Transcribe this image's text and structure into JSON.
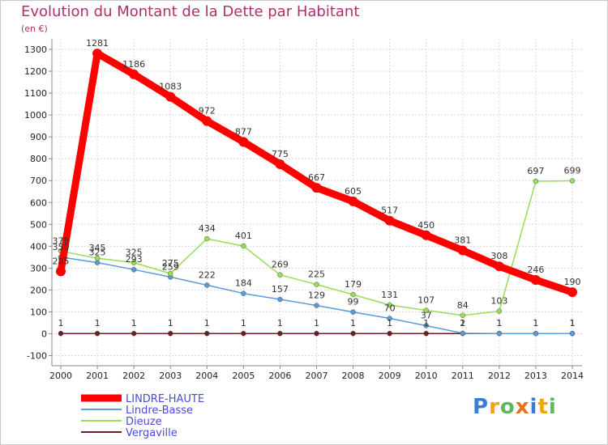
{
  "title": "Evolution du Montant de la Dette par Habitant",
  "subtitle": "(en €)",
  "logo_text": "Proxiti",
  "chart_data": {
    "type": "line",
    "title": "Evolution du Montant de la Dette par Habitant",
    "ylabel": "(en €)",
    "xlabel": "",
    "ylim": [
      -100,
      1300
    ],
    "yticks": [
      -100,
      0,
      100,
      200,
      300,
      400,
      500,
      600,
      700,
      800,
      900,
      1000,
      1100,
      1200,
      1300
    ],
    "grid": true,
    "legend_position": "bottom-left",
    "categories": [
      "2000",
      "2001",
      "2002",
      "2003",
      "2004",
      "2005",
      "2006",
      "2007",
      "2008",
      "2009",
      "2010",
      "2011",
      "2012",
      "2013",
      "2014"
    ],
    "series": [
      {
        "name": "Vergaville",
        "color": "#6b1f24",
        "line_width": 1.5,
        "marker_size": 3,
        "values": [
          1,
          1,
          1,
          1,
          1,
          1,
          1,
          1,
          1,
          1,
          1,
          1,
          1,
          1,
          1
        ],
        "labels": [
          "1",
          "1",
          "1",
          "1",
          "1",
          "1",
          "1",
          "1",
          "1",
          "1",
          "1",
          "1",
          "1",
          "1",
          "1"
        ]
      },
      {
        "name": "Lindre-Basse",
        "color": "#5b9bd5",
        "line_width": 1.5,
        "marker_size": 3,
        "values": [
          350,
          325,
          293,
          259,
          222,
          184,
          157,
          129,
          99,
          70,
          37,
          2,
          1,
          1,
          1
        ],
        "labels": [
          "350",
          "325",
          "293",
          "259",
          "222",
          "184",
          "157",
          "129",
          "99",
          "70",
          "37",
          "2",
          "1",
          "1",
          "1"
        ]
      },
      {
        "name": "Dieuze",
        "color": "#99dd55",
        "line_width": 1.5,
        "marker_size": 3,
        "values": [
          378,
          345,
          325,
          275,
          434,
          401,
          269,
          225,
          179,
          131,
          107,
          84,
          103,
          697,
          699
        ],
        "labels": [
          "378",
          "345",
          "325",
          "275",
          "434",
          "401",
          "269",
          "225",
          "179",
          "131",
          "107",
          "84",
          "103",
          "697",
          "699"
        ]
      },
      {
        "name": "LINDRE-HAUTE",
        "color": "#ff0000",
        "line_width": 9,
        "marker_size": 6,
        "values": [
          285,
          1281,
          1186,
          1083,
          972,
          877,
          775,
          667,
          605,
          517,
          450,
          381,
          308,
          246,
          190
        ],
        "labels": [
          "285",
          "1281",
          "1186",
          "1083",
          "972",
          "877",
          "775",
          "667",
          "605",
          "517",
          "450",
          "381",
          "308",
          "246",
          "190"
        ]
      }
    ],
    "legend": [
      {
        "name": "LINDRE-HAUTE",
        "color": "#ff0000",
        "text_color": "#4a4ad8",
        "thick": true
      },
      {
        "name": "Lindre-Basse",
        "color": "#5b9bd5",
        "text_color": "#4a4ad8",
        "thick": false
      },
      {
        "name": "Dieuze",
        "color": "#99dd55",
        "text_color": "#4a4ad8",
        "thick": false
      },
      {
        "name": "Vergaville",
        "color": "#6b1f24",
        "text_color": "#4a4ad8",
        "thick": false
      }
    ]
  }
}
